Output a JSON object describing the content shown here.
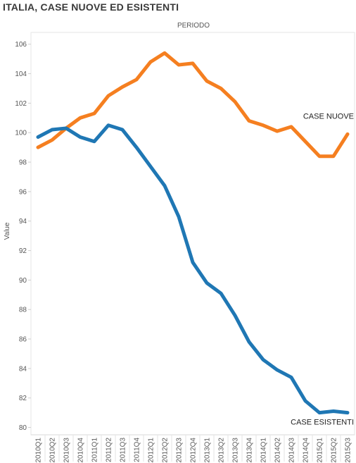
{
  "chart_data": {
    "type": "line",
    "title": "ITALIA, CASE NUOVE ED ESISTENTI",
    "column_header": "PERIODO",
    "xlabel": "",
    "ylabel": "Value",
    "ylim": [
      79.5,
      106.8
    ],
    "yticks": [
      80,
      82,
      84,
      86,
      88,
      90,
      92,
      94,
      96,
      98,
      100,
      102,
      104,
      106
    ],
    "grid": false,
    "legend": "inline labels at line ends",
    "categories": [
      "2010Q1",
      "2010Q2",
      "2010Q3",
      "2010Q4",
      "2011Q1",
      "2011Q2",
      "2011Q3",
      "2011Q4",
      "2012Q1",
      "2012Q2",
      "2012Q3",
      "2012Q4",
      "2013Q1",
      "2013Q2",
      "2013Q3",
      "2013Q4",
      "2014Q1",
      "2014Q2",
      "2014Q3",
      "2014Q4",
      "2015Q1",
      "2015Q2",
      "2015Q3"
    ],
    "series": [
      {
        "name": "CASE NUOVE",
        "color": "#f57f20",
        "values": [
          99.0,
          99.5,
          100.3,
          101.0,
          101.3,
          102.5,
          103.1,
          103.6,
          104.8,
          105.4,
          104.6,
          104.7,
          103.5,
          103.0,
          102.1,
          100.8,
          100.5,
          100.1,
          100.4,
          99.4,
          98.4,
          98.4,
          99.9
        ]
      },
      {
        "name": "CASE ESISTENTI",
        "color": "#1f77b4",
        "values": [
          99.7,
          100.2,
          100.3,
          99.7,
          99.4,
          100.5,
          100.2,
          99.0,
          97.7,
          96.4,
          94.3,
          91.2,
          89.8,
          89.1,
          87.6,
          85.8,
          84.6,
          83.9,
          83.4,
          81.8,
          81.0,
          81.1,
          81.0
        ]
      }
    ]
  }
}
